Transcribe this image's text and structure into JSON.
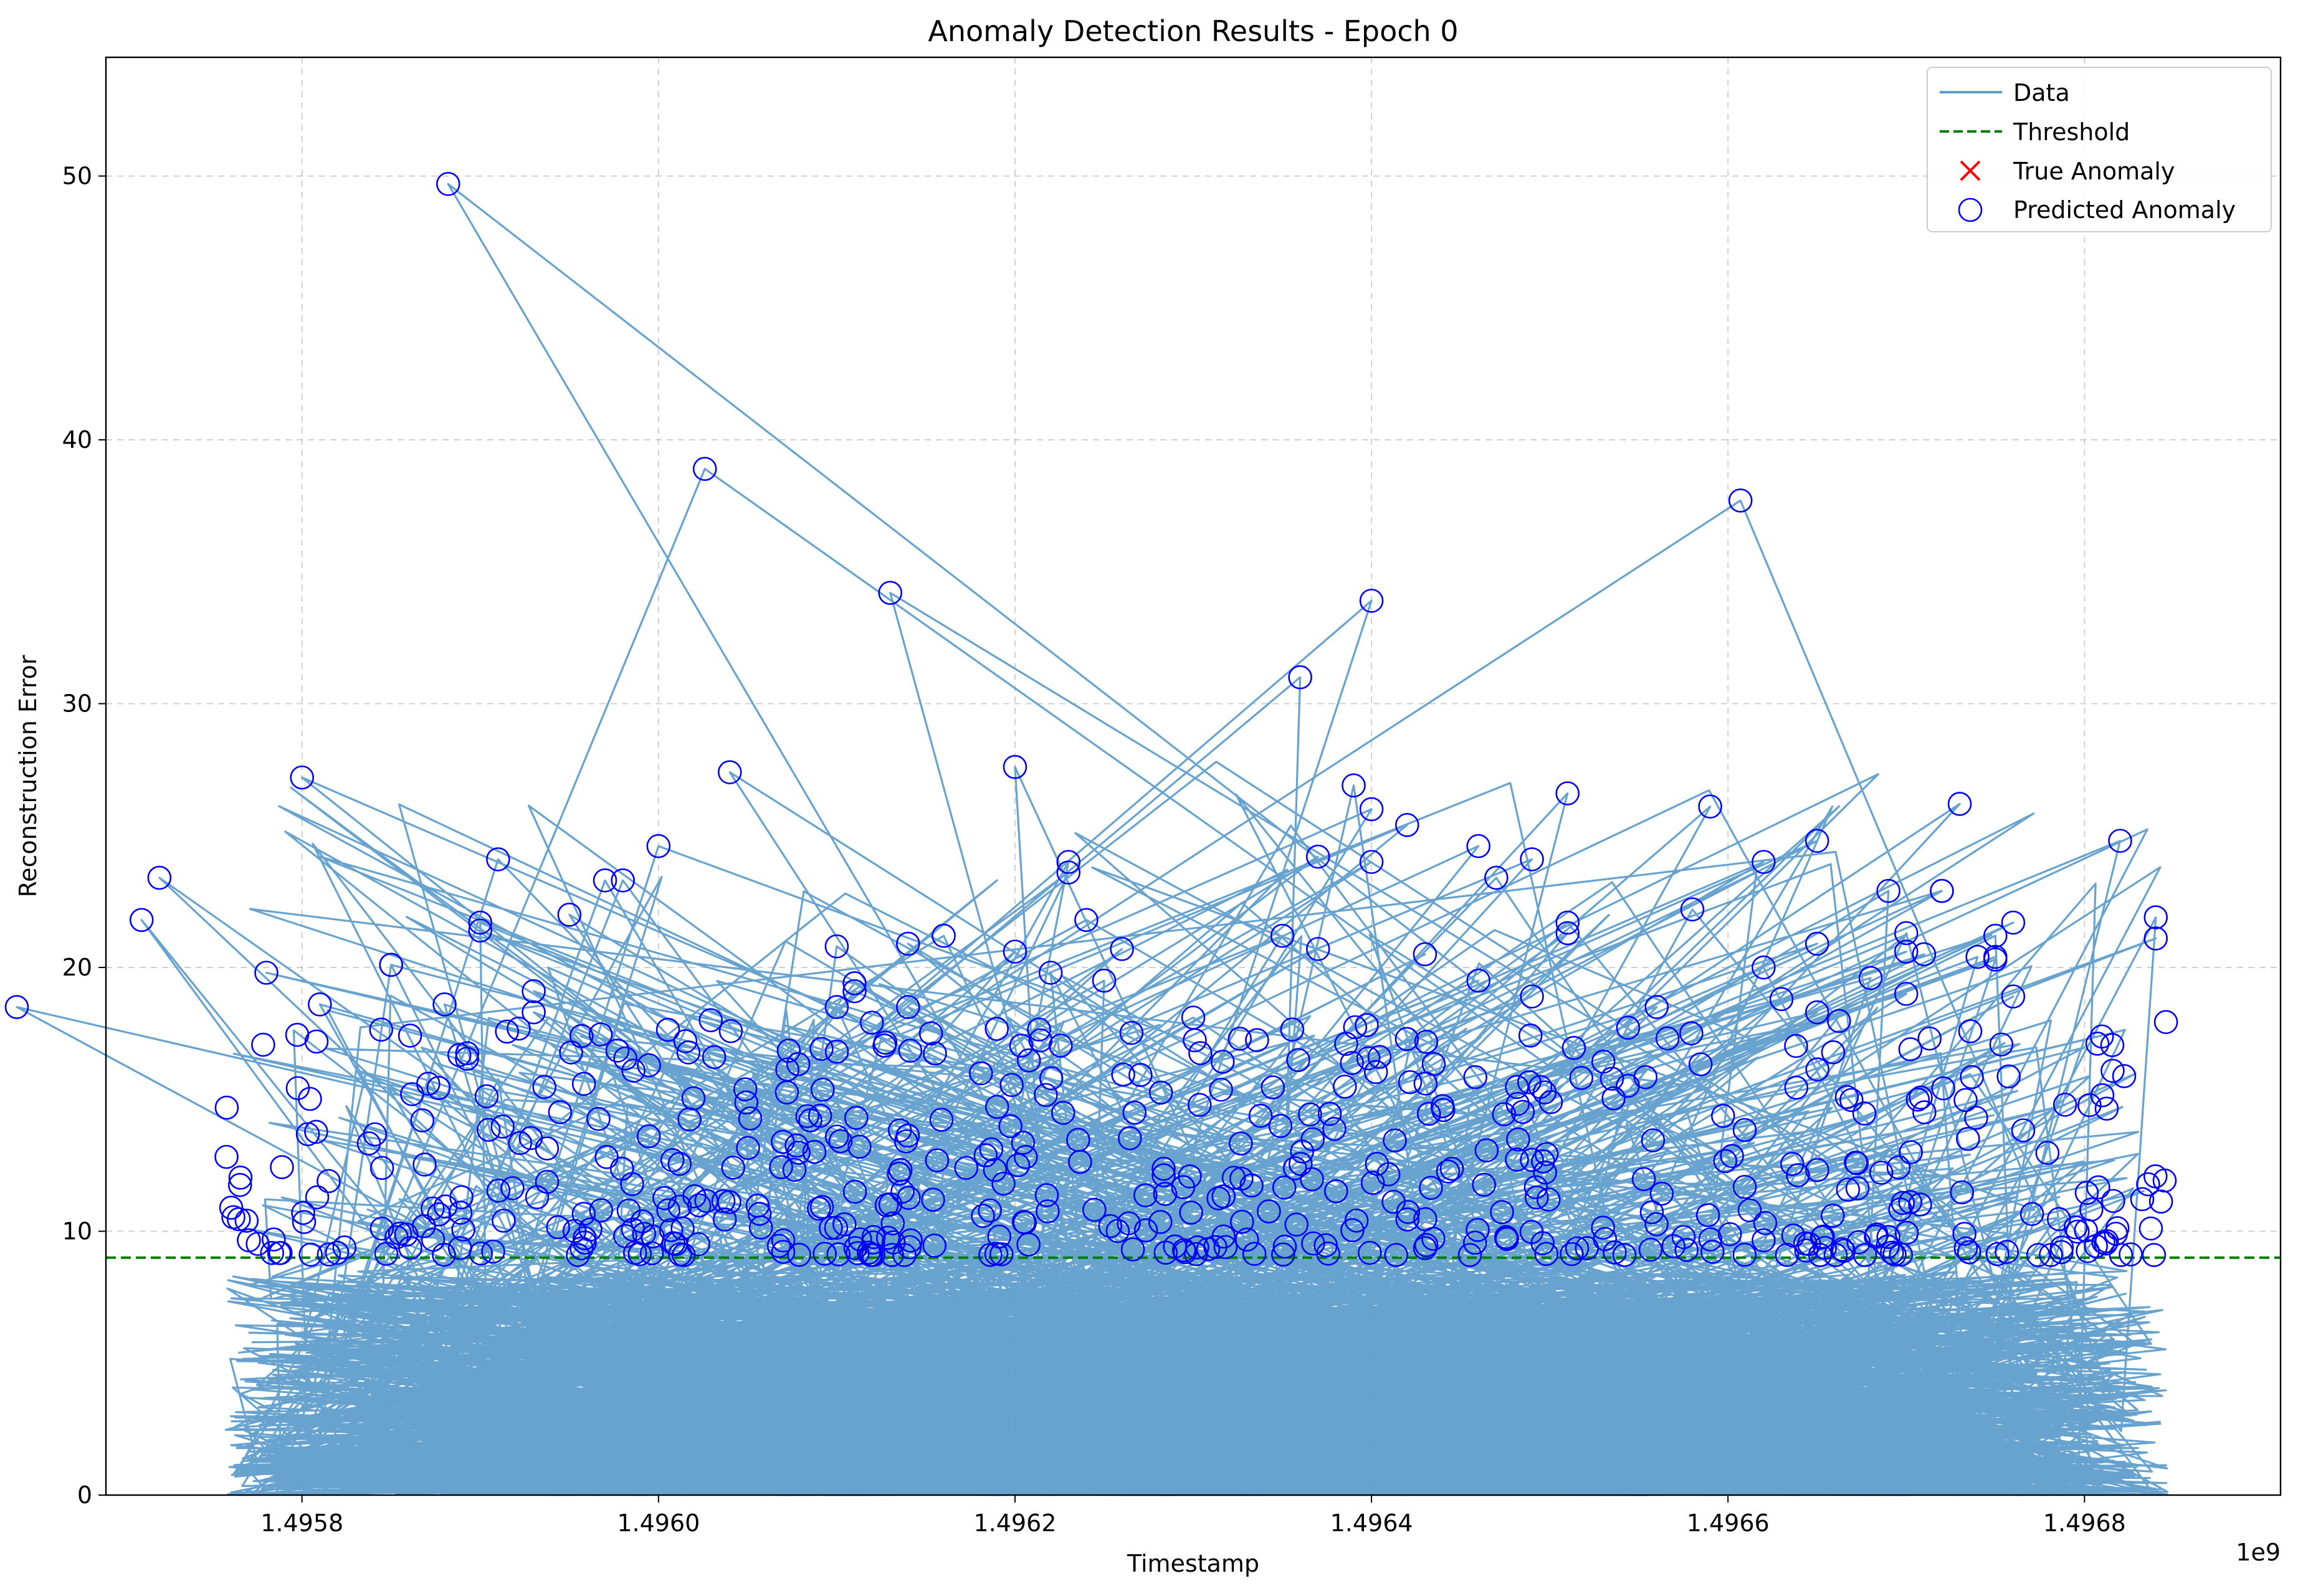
{
  "chart_data": {
    "type": "line",
    "title": "Anomaly Detection Results - Epoch 0",
    "xlabel": "Timestamp",
    "ylabel": "Reconstruction Error",
    "x_offset_label": "1e9",
    "xlim": [
      1.49569,
      1.49691
    ],
    "ylim": [
      0,
      54.5
    ],
    "x_ticks": [
      1.4958,
      1.496,
      1.4962,
      1.4964,
      1.4966,
      1.4968
    ],
    "x_tick_labels": [
      "1.4958",
      "1.4960",
      "1.4962",
      "1.4964",
      "1.4966",
      "1.4968"
    ],
    "y_ticks": [
      0,
      10,
      20,
      30,
      40,
      50
    ],
    "y_tick_labels": [
      "0",
      "10",
      "20",
      "30",
      "40",
      "50"
    ],
    "grid": true,
    "legend_position": "top-right",
    "colors": {
      "data": "#5f9ecb",
      "threshold": "#008000",
      "true_anomaly": "#ff0000",
      "predicted_anomaly": "#0000ff"
    },
    "series": [
      {
        "name": "Data",
        "style": "line"
      },
      {
        "name": "Threshold",
        "style": "dashed",
        "value": 9.0
      },
      {
        "name": "True Anomaly",
        "style": "x-marker",
        "points": []
      },
      {
        "name": "Predicted Anomaly",
        "style": "circle-marker",
        "points": [
          [
            1.495882,
            49.7
          ],
          [
            1.496026,
            38.9
          ],
          [
            1.496607,
            37.7
          ],
          [
            1.49613,
            34.2
          ],
          [
            1.4964,
            33.9
          ],
          [
            1.49636,
            31.0
          ],
          [
            1.4962,
            27.6
          ],
          [
            1.4958,
            27.2
          ],
          [
            1.49604,
            27.4
          ],
          [
            1.49639,
            26.9
          ],
          [
            1.49651,
            26.6
          ],
          [
            1.49659,
            26.1
          ],
          [
            1.49673,
            26.2
          ],
          [
            1.4964,
            26.0
          ],
          [
            1.49642,
            25.4
          ],
          [
            1.49682,
            24.8
          ],
          [
            1.496,
            24.6
          ],
          [
            1.49646,
            24.6
          ],
          [
            1.49649,
            24.1
          ],
          [
            1.49591,
            24.1
          ],
          [
            1.49623,
            24.0
          ],
          [
            1.49662,
            24.0
          ],
          [
            1.4964,
            24.0
          ],
          [
            1.49637,
            24.2
          ],
          [
            1.49665,
            24.8
          ],
          [
            1.49572,
            23.4
          ],
          [
            1.49597,
            23.3
          ],
          [
            1.49598,
            23.3
          ],
          [
            1.49647,
            23.4
          ],
          [
            1.49669,
            22.9
          ],
          [
            1.49672,
            22.9
          ],
          [
            1.49672,
            22.9
          ],
          [
            1.49623,
            23.6
          ],
          [
            1.49595,
            22.0
          ],
          [
            1.49658,
            22.2
          ],
          [
            1.49684,
            21.9
          ],
          [
            1.49624,
            21.8
          ],
          [
            1.49571,
            21.8
          ],
          [
            1.4959,
            21.7
          ],
          [
            1.4959,
            21.4
          ],
          [
            1.49651,
            21.7
          ],
          [
            1.49651,
            21.3
          ],
          [
            1.49616,
            21.2
          ],
          [
            1.49635,
            21.2
          ],
          [
            1.49684,
            21.1
          ],
          [
            1.49676,
            21.7
          ],
          [
            1.49675,
            21.2
          ],
          [
            1.4967,
            21.3
          ],
          [
            1.49614,
            20.9
          ],
          [
            1.4961,
            20.8
          ],
          [
            1.49665,
            20.9
          ],
          [
            1.4962,
            20.6
          ],
          [
            1.49626,
            20.7
          ],
          [
            1.49643,
            20.5
          ],
          [
            1.49637,
            20.7
          ],
          [
            1.49585,
            20.1
          ],
          [
            1.49585,
            20.1
          ],
          [
            1.49578,
            19.8
          ],
          [
            1.49662,
            20.0
          ],
          [
            1.49674,
            20.4
          ],
          [
            1.49675,
            20.3
          ],
          [
            1.49675,
            20.4
          ],
          [
            1.4967,
            20.6
          ],
          [
            1.49671,
            20.5
          ],
          [
            1.49622,
            19.8
          ],
          [
            1.49625,
            19.5
          ],
          [
            1.49646,
            19.5
          ],
          [
            1.49668,
            19.6
          ],
          [
            1.49611,
            19.4
          ],
          [
            1.49611,
            19.1
          ],
          [
            1.49593,
            19.1
          ],
          [
            1.49676,
            18.9
          ],
          [
            1.4967,
            19.0
          ],
          [
            1.49564,
            18.5
          ],
          [
            1.49581,
            18.6
          ],
          [
            1.49588,
            18.6
          ],
          [
            1.49593,
            18.3
          ],
          [
            1.4961,
            18.5
          ],
          [
            1.49614,
            18.5
          ],
          [
            1.4963,
            18.1
          ],
          [
            1.49649,
            18.9
          ],
          [
            1.49656,
            18.5
          ],
          [
            1.49663,
            18.8
          ],
          [
            1.49665,
            18.3
          ]
        ]
      }
    ],
    "data_line_note": "dense time series of reconstruction error values, 0 to about 50, sampled across the full timestamp range"
  }
}
